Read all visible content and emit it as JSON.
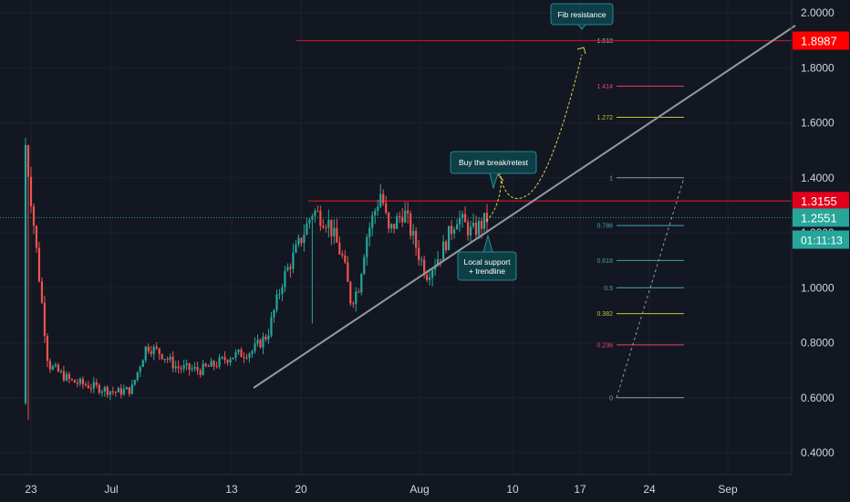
{
  "chart_data": {
    "type": "candlestick",
    "title": "",
    "xlabel": "",
    "ylabel": "",
    "ylim": [
      0.35,
      2.05
    ],
    "y_ticks": [
      "2.0000",
      "1.8000",
      "1.6000",
      "1.4000",
      "1.2000",
      "1.0000",
      "0.8000",
      "0.6000",
      "0.4000"
    ],
    "x_ticks": [
      "23",
      "Jul",
      "13",
      "20",
      "Aug",
      "10",
      "17",
      "24",
      "Sep"
    ],
    "grid": true,
    "price_markers": [
      {
        "label": "1.8987",
        "value": 1.8987,
        "color": "#ff0000"
      },
      {
        "label": "1.3155",
        "value": 1.3155,
        "color": "#e0001b"
      },
      {
        "label": "1.2551",
        "value": 1.2551,
        "color": "#26a69a"
      },
      {
        "label": "01:11:13",
        "value": 1.175,
        "color": "#26a69a"
      }
    ],
    "fib_levels": [
      {
        "label": "1.618",
        "value": 1.8987,
        "color": "#b2b5be"
      },
      {
        "label": "1.414",
        "value": 1.7334,
        "color": "#e04a5a"
      },
      {
        "label": "1.272",
        "value": 1.62,
        "color": "#b8c93d"
      },
      {
        "label": "1",
        "value": 1.4,
        "color": "#9598a1"
      },
      {
        "label": "0.786",
        "value": 1.226,
        "color": "#3fa9b2"
      },
      {
        "label": "0.618",
        "value": 1.099,
        "color": "#3fa98a"
      },
      {
        "label": "0.5",
        "value": 1.0,
        "color": "#3fa9b2"
      },
      {
        "label": "0.382",
        "value": 0.906,
        "color": "#b8c93d"
      },
      {
        "label": "0.236",
        "value": 0.792,
        "color": "#e04a5a"
      },
      {
        "label": "0",
        "value": 0.6,
        "color": "#9598a1"
      }
    ],
    "annotations": [
      {
        "text": "Fib resistance"
      },
      {
        "text": "Buy the break/retest"
      },
      {
        "text": "Local support\n+ trendline"
      }
    ],
    "anchors": [
      {
        "x": 1,
        "y": 1.52
      },
      {
        "x": 4,
        "y": 0.72
      },
      {
        "x": 7,
        "y": 0.66
      },
      {
        "x": 10,
        "y": 0.64
      },
      {
        "x": 13,
        "y": 0.62
      },
      {
        "x": 15,
        "y": 0.63
      },
      {
        "x": 17,
        "y": 0.79
      },
      {
        "x": 19,
        "y": 0.76
      },
      {
        "x": 21,
        "y": 0.71
      },
      {
        "x": 24,
        "y": 0.7
      },
      {
        "x": 26,
        "y": 0.72
      },
      {
        "x": 28,
        "y": 0.75
      },
      {
        "x": 31,
        "y": 0.77
      },
      {
        "x": 33,
        "y": 0.83
      },
      {
        "x": 35,
        "y": 1.03
      },
      {
        "x": 37,
        "y": 1.15
      },
      {
        "x": 39,
        "y": 1.28
      },
      {
        "x": 41,
        "y": 1.24
      },
      {
        "x": 43,
        "y": 1.1
      },
      {
        "x": 44,
        "y": 0.95
      },
      {
        "x": 45,
        "y": 1.0
      },
      {
        "x": 46,
        "y": 1.18
      },
      {
        "x": 48,
        "y": 1.35
      },
      {
        "x": 49,
        "y": 1.2
      },
      {
        "x": 51,
        "y": 1.28
      },
      {
        "x": 53,
        "y": 1.12
      },
      {
        "x": 54,
        "y": 1.05
      },
      {
        "x": 56,
        "y": 1.13
      },
      {
        "x": 58,
        "y": 1.26
      },
      {
        "x": 60,
        "y": 1.2
      },
      {
        "x": 62,
        "y": 1.25
      }
    ]
  }
}
